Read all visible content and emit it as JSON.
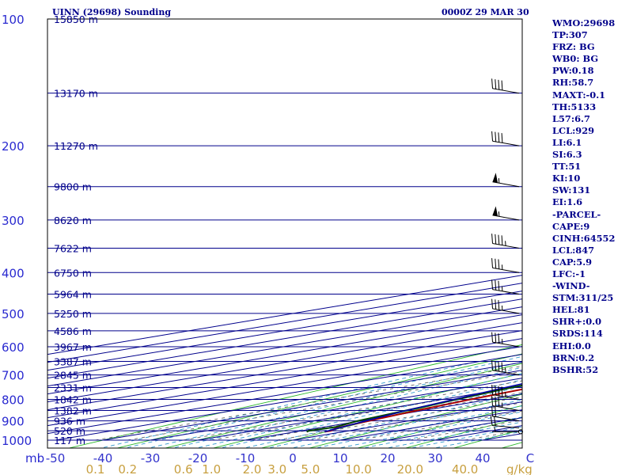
{
  "header": {
    "station": "UINN (29698) Sounding",
    "time": "0000Z 29 MAR 30"
  },
  "indices": [
    "WMO:29698",
    "TP:307",
    "FRZ: BG",
    "WB0: BG",
    "PW:0.18",
    "RH:58.7",
    "MAXT:-0.1",
    "TH:5133",
    "L57:6.7",
    "LCL:929",
    "LI:6.1",
    "SI:6.3",
    "TT:51",
    "KI:10",
    "SW:131",
    "EI:1.6",
    "-PARCEL-",
    "CAPE:9",
    "CINH:64552",
    "LCL:847",
    "CAP:5.9",
    "LFC:-1",
    "-WIND-",
    "STM:311/25",
    "HEL:81",
    "SHR+:0.0",
    "SRDS:114",
    "EHI:0.0",
    "BRN:0.2",
    "BSHR:52"
  ],
  "colors": {
    "isobar": "#00008b",
    "isotherm": "#00008b",
    "dry_adiabat": "#2db82d",
    "moist_adiabat": "#3399cc",
    "mixing_ratio": "#666666",
    "temperature": "#aa0000",
    "dewpoint": "#004400",
    "parcel": "#0000aa",
    "pressure_labels": "#2a2ad0",
    "height_labels": "#00008b",
    "temp_labels": "#3333cc",
    "mixing_labels": "#c8a040",
    "wind_barbs": "#000000"
  },
  "chart_data": {
    "type": "line",
    "xlabel": "",
    "ylabel": "mb",
    "xlim": [
      -50,
      50
    ],
    "ylim": [
      1000,
      100
    ],
    "pressure_ticks": [
      100,
      200,
      300,
      400,
      500,
      600,
      700,
      800,
      900,
      1000
    ],
    "pressure_ticks_text": [
      "100",
      "200",
      "300",
      "400",
      "500",
      "600",
      "700",
      "800",
      "900",
      "1000"
    ],
    "temperature_ticks": [
      -50,
      -40,
      -30,
      -20,
      -10,
      0,
      10,
      20,
      30,
      40,
      50
    ],
    "temperature_ticks_text": [
      "-50",
      "-40",
      "-30",
      "-20",
      "-10",
      "0",
      "10",
      "20",
      "30",
      "40",
      "C"
    ],
    "mixing_ratio_ticks": [
      0.1,
      0.2,
      0.6,
      1.0,
      2.0,
      3.0,
      5.0,
      10.0,
      20.0,
      40.0
    ],
    "mixing_ratio_ticks_text": [
      "0.1",
      "0.2",
      "0.6",
      "1.0",
      "2.0",
      "3.0",
      "5.0",
      "10.0",
      "20.0",
      "40.0"
    ],
    "mixing_ratio_unit": "g/kg",
    "heights": [
      {
        "p": 100,
        "label": "15850 m"
      },
      {
        "p": 150,
        "label": "13170 m"
      },
      {
        "p": 200,
        "label": "11270 m"
      },
      {
        "p": 250,
        "label": "9800 m"
      },
      {
        "p": 300,
        "label": "8620 m"
      },
      {
        "p": 350,
        "label": "7622 m"
      },
      {
        "p": 400,
        "label": "6750 m"
      },
      {
        "p": 450,
        "label": "5964 m"
      },
      {
        "p": 500,
        "label": "5250 m"
      },
      {
        "p": 550,
        "label": "4586 m"
      },
      {
        "p": 600,
        "label": "3967 m"
      },
      {
        "p": 650,
        "label": "3387 m"
      },
      {
        "p": 700,
        "label": "2845 m"
      },
      {
        "p": 750,
        "label": "2331 m"
      },
      {
        "p": 800,
        "label": "1842 m"
      },
      {
        "p": 850,
        "label": "1382 m"
      },
      {
        "p": 900,
        "label": "936 m"
      },
      {
        "p": 950,
        "label": "520 m"
      },
      {
        "p": 1000,
        "label": "117 m"
      }
    ],
    "series": [
      {
        "key": "temperature",
        "points": [
          [
            955,
            -3.9
          ],
          [
            950,
            -3.8
          ],
          [
            940,
            -5.5
          ],
          [
            920,
            -7.1
          ],
          [
            900,
            -8.3
          ],
          [
            850,
            -11.4
          ],
          [
            800,
            -14.0
          ],
          [
            750,
            -16.2
          ],
          [
            700,
            -18.6
          ],
          [
            650,
            -20.4
          ],
          [
            600,
            -22.3
          ],
          [
            550,
            -25.4
          ],
          [
            500,
            -29.6
          ],
          [
            450,
            -35.4
          ],
          [
            400,
            -40.6
          ],
          [
            350,
            -48.2
          ],
          [
            300,
            -57.9
          ],
          [
            280,
            -58.0
          ],
          [
            250,
            -55.5
          ],
          [
            230,
            -53.8
          ],
          [
            200,
            -57.3
          ],
          [
            150,
            -62.0
          ],
          [
            120,
            -63.5
          ],
          [
            100,
            -66.7
          ]
        ]
      },
      {
        "key": "dewpoint",
        "points": [
          [
            955,
            -7.7
          ],
          [
            950,
            -8.4
          ],
          [
            930,
            -7.6
          ],
          [
            900,
            -10.7
          ],
          [
            850,
            -13.7
          ],
          [
            800,
            -16.9
          ],
          [
            750,
            -20.4
          ],
          [
            700,
            -22.6
          ],
          [
            650,
            -26.0
          ],
          [
            600,
            -32.0
          ],
          [
            550,
            -37.3
          ],
          [
            500,
            -38.8
          ],
          [
            450,
            -42.1
          ],
          [
            400,
            -46.5
          ],
          [
            350,
            -52.2
          ],
          [
            300,
            -58.6
          ],
          [
            250,
            -64.9
          ],
          [
            230,
            -68.7
          ],
          [
            200,
            -69.9
          ],
          [
            150,
            -75.0
          ],
          [
            120,
            -78.9
          ],
          [
            100,
            -79.8
          ]
        ]
      },
      {
        "key": "parcel",
        "points": [
          [
            955,
            -3.9
          ],
          [
            900,
            -9.0
          ],
          [
            850,
            -13.6
          ],
          [
            800,
            -17.5
          ],
          [
            750,
            -21.7
          ],
          [
            700,
            -25.5
          ],
          [
            650,
            -30.0
          ],
          [
            600,
            -34.4
          ],
          [
            550,
            -39.4
          ],
          [
            500,
            -44.5
          ],
          [
            450,
            -50.5
          ],
          [
            400,
            -56.4
          ],
          [
            350,
            -63.3
          ],
          [
            300,
            -70.7
          ],
          [
            250,
            -79.7
          ],
          [
            200,
            -89.4
          ],
          [
            150,
            -102.0
          ],
          [
            120,
            -110.0
          ]
        ]
      }
    ],
    "wind_barbs": [
      {
        "p": 955,
        "dir": 270,
        "kt": 5
      },
      {
        "p": 935,
        "dir": 275,
        "kt": 20
      },
      {
        "p": 900,
        "dir": 280,
        "kt": 20
      },
      {
        "p": 850,
        "dir": 280,
        "kt": 35
      },
      {
        "p": 800,
        "dir": 280,
        "kt": 45
      },
      {
        "p": 700,
        "dir": 280,
        "kt": 45
      },
      {
        "p": 600,
        "dir": 280,
        "kt": 35
      },
      {
        "p": 500,
        "dir": 280,
        "kt": 35
      },
      {
        "p": 450,
        "dir": 280,
        "kt": 35
      },
      {
        "p": 400,
        "dir": 280,
        "kt": 35
      },
      {
        "p": 350,
        "dir": 280,
        "kt": 45
      },
      {
        "p": 300,
        "dir": 280,
        "kt": 55
      },
      {
        "p": 250,
        "dir": 280,
        "kt": 55
      },
      {
        "p": 200,
        "dir": 280,
        "kt": 40
      },
      {
        "p": 150,
        "dir": 280,
        "kt": 40
      }
    ]
  }
}
